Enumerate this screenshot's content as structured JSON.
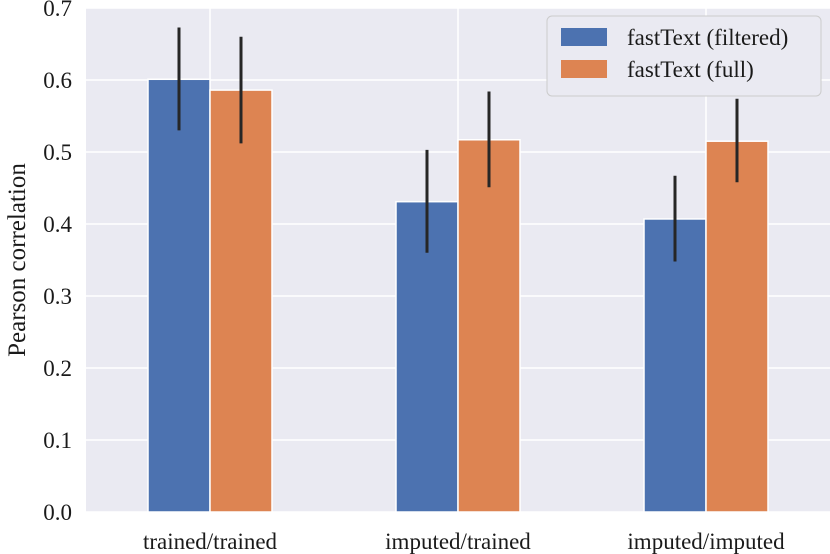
{
  "chart_data": {
    "type": "bar",
    "title": "",
    "xlabel": "",
    "ylabel": "Pearson correlation",
    "ylim": [
      0,
      0.7
    ],
    "yticks": [
      "0.0",
      "0.1",
      "0.2",
      "0.3",
      "0.4",
      "0.5",
      "0.6",
      "0.7"
    ],
    "categories": [
      "trained/trained",
      "imputed/trained",
      "imputed/imputed"
    ],
    "grid": true,
    "legend_position": "top-right",
    "series": [
      {
        "name": "fastText (filtered)",
        "color": "#4c72b0",
        "values": [
          0.601,
          0.431,
          0.407
        ],
        "error_low": [
          0.53,
          0.36,
          0.348
        ],
        "error_high": [
          0.673,
          0.503,
          0.467
        ]
      },
      {
        "name": "fastText (full)",
        "color": "#dd8452",
        "values": [
          0.586,
          0.517,
          0.515
        ],
        "error_low": [
          0.512,
          0.451,
          0.458
        ],
        "error_high": [
          0.66,
          0.584,
          0.574
        ]
      }
    ]
  }
}
